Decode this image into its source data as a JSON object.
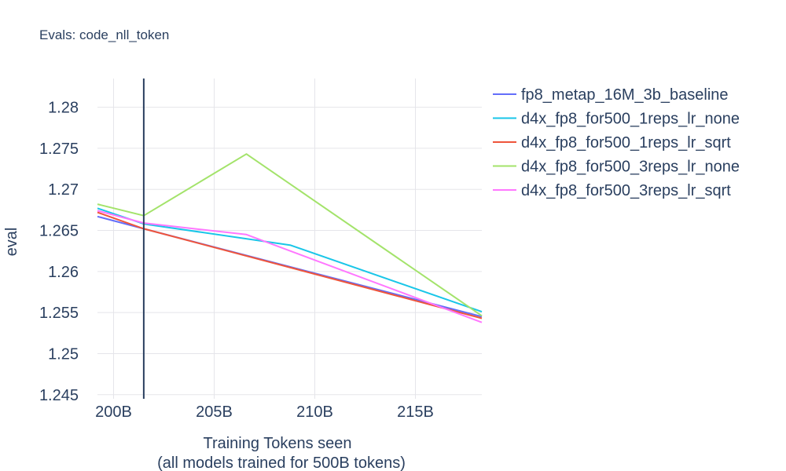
{
  "chart_data": {
    "type": "line",
    "title": "Evals: code_nll_token",
    "xlabel": [
      "Training Tokens seen",
      "(all models trained for 500B tokens)"
    ],
    "ylabel": "eval",
    "x_unit": "B tokens",
    "xlim": [
      199.2,
      218.3
    ],
    "ylim": [
      1.2445,
      1.2835
    ],
    "x_ticks": [
      {
        "value": 200,
        "label": "200B"
      },
      {
        "value": 205,
        "label": "205B"
      },
      {
        "value": 210,
        "label": "210B"
      },
      {
        "value": 215,
        "label": "215B"
      }
    ],
    "y_ticks": [
      {
        "value": 1.245,
        "label": "1.245"
      },
      {
        "value": 1.25,
        "label": "1.25"
      },
      {
        "value": 1.255,
        "label": "1.255"
      },
      {
        "value": 1.26,
        "label": "1.26"
      },
      {
        "value": 1.265,
        "label": "1.265"
      },
      {
        "value": 1.27,
        "label": "1.27"
      },
      {
        "value": 1.275,
        "label": "1.275"
      },
      {
        "value": 1.28,
        "label": "1.28"
      }
    ],
    "grid": true,
    "vertical_marker": {
      "x": 201.5,
      "color": "#2a3f5f"
    },
    "legend_position": "right",
    "series": [
      {
        "name": "fp8_metap_16M_3b_baseline",
        "color": "#636efa",
        "x": [
          199.2,
          201.5,
          218.3
        ],
        "y": [
          1.2667,
          1.2652,
          1.2545
        ]
      },
      {
        "name": "d4x_fp8_for500_1reps_lr_none",
        "color": "#19c6e8",
        "x": [
          199.2,
          201.5,
          208.8,
          218.3
        ],
        "y": [
          1.2677,
          1.2658,
          1.2632,
          1.2551
        ]
      },
      {
        "name": "d4x_fp8_for500_1reps_lr_sqrt",
        "color": "#ef553b",
        "x": [
          199.2,
          201.5,
          218.3
        ],
        "y": [
          1.2672,
          1.2652,
          1.2543
        ]
      },
      {
        "name": "d4x_fp8_for500_3reps_lr_none",
        "color": "#a3e36a",
        "x": [
          199.2,
          201.5,
          206.6,
          218.3
        ],
        "y": [
          1.2682,
          1.2668,
          1.2743,
          1.2546
        ]
      },
      {
        "name": "d4x_fp8_for500_3reps_lr_sqrt",
        "color": "#ff77ff",
        "x": [
          199.2,
          201.5,
          206.6,
          218.3
        ],
        "y": [
          1.2674,
          1.2659,
          1.2645,
          1.2538
        ]
      }
    ]
  }
}
